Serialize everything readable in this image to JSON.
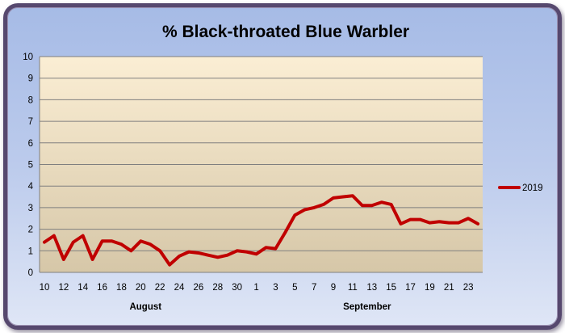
{
  "chart_data": {
    "type": "line",
    "title": "% Black-throated Blue Warbler",
    "xlabel": "",
    "ylabel": "",
    "ylim": [
      0,
      10
    ],
    "yticks": [
      "0",
      "1",
      "2",
      "3",
      "4",
      "5",
      "6",
      "7",
      "8",
      "9",
      "10"
    ],
    "x_tick_labels": [
      "10",
      "12",
      "14",
      "16",
      "18",
      "20",
      "22",
      "24",
      "26",
      "28",
      "30",
      "1",
      "3",
      "5",
      "7",
      "9",
      "11",
      "13",
      "15",
      "17",
      "19",
      "21",
      "23"
    ],
    "x_category_labels": [
      "August",
      "September"
    ],
    "x": [
      "Aug 10",
      "Aug 11",
      "Aug 12",
      "Aug 13",
      "Aug 14",
      "Aug 15",
      "Aug 16",
      "Aug 17",
      "Aug 18",
      "Aug 19",
      "Aug 20",
      "Aug 21",
      "Aug 22",
      "Aug 23",
      "Aug 24",
      "Aug 25",
      "Aug 26",
      "Aug 27",
      "Aug 28",
      "Aug 29",
      "Aug 30",
      "Aug 31",
      "Sep 1",
      "Sep 2",
      "Sep 3",
      "Sep 4",
      "Sep 5",
      "Sep 6",
      "Sep 7",
      "Sep 8",
      "Sep 9",
      "Sep 10",
      "Sep 11",
      "Sep 12",
      "Sep 13",
      "Sep 14",
      "Sep 15",
      "Sep 16",
      "Sep 17",
      "Sep 18",
      "Sep 19",
      "Sep 20",
      "Sep 21",
      "Sep 22",
      "Sep 23",
      "Sep 24"
    ],
    "series": [
      {
        "name": "2019",
        "color": "#c00000",
        "values": [
          1.4,
          1.7,
          0.6,
          1.4,
          1.7,
          0.6,
          1.45,
          1.45,
          1.3,
          1.0,
          1.45,
          1.3,
          1.0,
          0.35,
          0.75,
          0.95,
          0.9,
          0.8,
          0.7,
          0.8,
          1.0,
          0.95,
          0.85,
          1.15,
          1.1,
          1.85,
          2.65,
          2.9,
          3.0,
          3.15,
          3.45,
          3.5,
          3.55,
          3.1,
          3.1,
          3.25,
          3.15,
          2.25,
          2.45,
          2.45,
          2.3,
          2.35,
          2.3,
          2.3,
          2.5,
          2.25
        ]
      }
    ],
    "grid": "horizontal",
    "legend": "right",
    "plot_background": [
      "#fbeed4",
      "#d6c7a8"
    ],
    "outer_background": [
      "#a6bbe6",
      "#dfe6f6"
    ]
  }
}
